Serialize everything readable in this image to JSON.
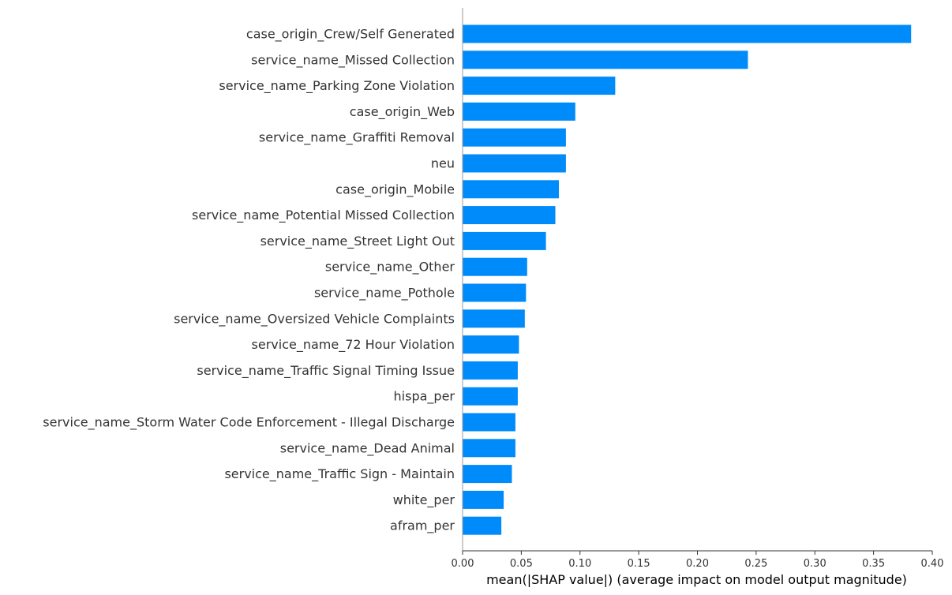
{
  "chart_data": {
    "type": "bar",
    "orientation": "horizontal",
    "title": "",
    "xlabel": "mean(|SHAP value|) (average impact on model output magnitude)",
    "ylabel": "",
    "xlim": [
      0,
      0.4
    ],
    "xticks": [
      0.0,
      0.05,
      0.1,
      0.15,
      0.2,
      0.25,
      0.3,
      0.35,
      0.4
    ],
    "xtick_labels": [
      "0.00",
      "0.05",
      "0.10",
      "0.15",
      "0.20",
      "0.25",
      "0.30",
      "0.35",
      "0.40"
    ],
    "grid": false,
    "bar_color": "#008bfb",
    "categories": [
      "case_origin_Crew/Self Generated",
      "service_name_Missed Collection",
      "service_name_Parking Zone Violation",
      "case_origin_Web",
      "service_name_Graffiti Removal",
      "neu",
      "case_origin_Mobile",
      "service_name_Potential Missed Collection",
      "service_name_Street Light Out",
      "service_name_Other",
      "service_name_Pothole",
      "service_name_Oversized Vehicle Complaints",
      "service_name_72 Hour Violation",
      "service_name_Traffic Signal Timing Issue",
      "hispa_per",
      "service_name_Storm Water Code Enforcement - Illegal Discharge",
      "service_name_Dead Animal",
      "service_name_Traffic Sign - Maintain",
      "white_per",
      "afram_per"
    ],
    "values": [
      0.382,
      0.243,
      0.13,
      0.096,
      0.088,
      0.088,
      0.082,
      0.079,
      0.071,
      0.055,
      0.054,
      0.053,
      0.048,
      0.047,
      0.047,
      0.045,
      0.045,
      0.042,
      0.035,
      0.033
    ]
  }
}
